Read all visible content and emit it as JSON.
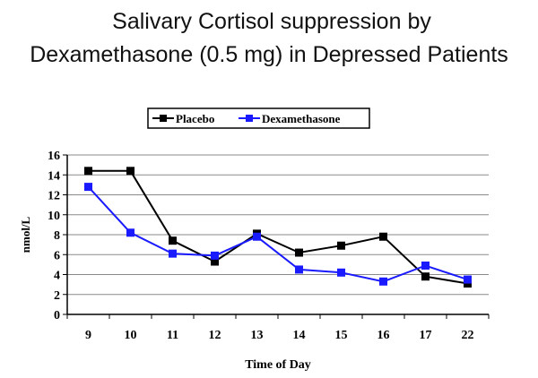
{
  "chart_data": {
    "type": "line",
    "title_lines": [
      "Salivary Cortisol suppression by",
      "Dexamethasone (0.5 mg) in Depressed Patients"
    ],
    "xlabel": "Time of Day",
    "ylabel": "nmol/L",
    "ylim": [
      0,
      16
    ],
    "y_ticks": [
      "0",
      "2",
      "4",
      "6",
      "8",
      "10",
      "12",
      "14",
      "16"
    ],
    "grid": true,
    "legend_position": "top",
    "categories": [
      "9",
      "10",
      "11",
      "12",
      "13",
      "14",
      "15",
      "16",
      "17",
      "22"
    ],
    "series": [
      {
        "name": "Placebo",
        "color": "#000000",
        "values": [
          14.4,
          14.4,
          7.4,
          5.3,
          8.1,
          6.2,
          6.9,
          7.8,
          3.8,
          3.1
        ]
      },
      {
        "name": "Dexamethasone",
        "color": "#1a1aff",
        "values": [
          12.8,
          8.2,
          6.1,
          5.9,
          7.8,
          4.5,
          4.2,
          3.3,
          4.9,
          3.5
        ]
      }
    ]
  }
}
